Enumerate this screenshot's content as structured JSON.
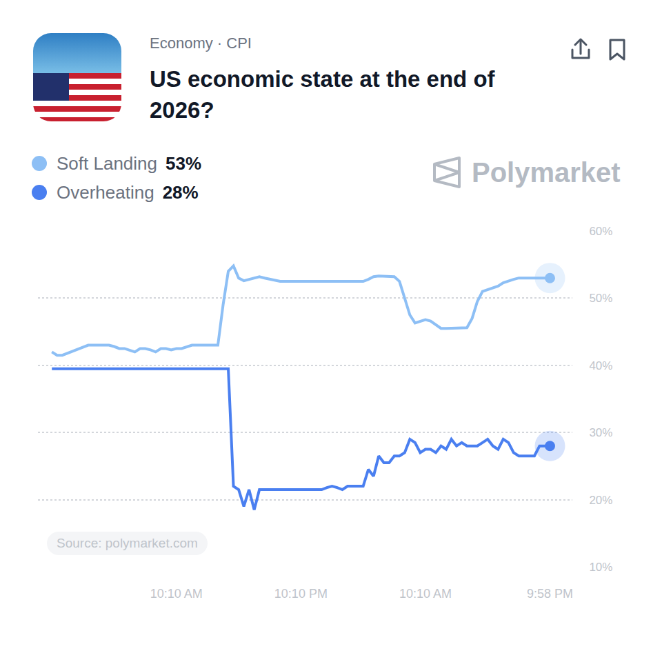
{
  "chart_data": {
    "type": "line",
    "category": "Economy · CPI",
    "title": "US economic state at the end of 2026?",
    "watermark": "Polymarket",
    "source": "Source: polymarket.com",
    "categories": [
      null,
      null,
      null,
      null,
      null,
      null,
      null,
      null,
      null,
      null,
      null,
      null,
      null,
      null,
      null,
      null,
      null,
      null,
      null,
      null,
      null,
      null,
      null,
      null,
      "10:10 AM",
      null,
      null,
      null,
      null,
      null,
      null,
      null,
      null,
      null,
      null,
      null,
      null,
      null,
      null,
      null,
      null,
      null,
      null,
      null,
      null,
      null,
      null,
      null,
      "10:10 PM",
      null,
      null,
      null,
      null,
      null,
      null,
      null,
      null,
      null,
      null,
      null,
      null,
      null,
      null,
      null,
      null,
      null,
      null,
      null,
      null,
      null,
      null,
      null,
      "10:10 AM",
      null,
      null,
      null,
      null,
      null,
      null,
      null,
      null,
      null,
      null,
      null,
      null,
      null,
      null,
      null,
      null,
      null,
      null,
      null,
      null,
      null,
      null,
      null,
      "9:58 PM"
    ],
    "series": [
      {
        "name": "Soft Landing",
        "current_label": "53%",
        "color": "#8dbff5",
        "line_style": "solid",
        "marker": "circle",
        "values": [
          42,
          41.5,
          41.5,
          41.8,
          42.2,
          42.5,
          42.8,
          43,
          43,
          43,
          43,
          43,
          42.8,
          42.5,
          42.5,
          42.3,
          42,
          42.5,
          42.5,
          42.3,
          42,
          42.5,
          42.5,
          42.3,
          42.5,
          42.5,
          42.8,
          43,
          43,
          43,
          43,
          43,
          43,
          49,
          54,
          54.8,
          53,
          52.6,
          52.8,
          53,
          53.2,
          53,
          52.8,
          52.6,
          52.5,
          52.5,
          52.5,
          52.5,
          52.5,
          52.5,
          52.5,
          52.5,
          52.5,
          52.5,
          52.5,
          52.5,
          52.5,
          52.5,
          52.5,
          52.5,
          52.5,
          52.8,
          53.2,
          53.3,
          53.3,
          53.3,
          53.2,
          52.5,
          50,
          47.5,
          46.3,
          46.5,
          46.8,
          46.6,
          46,
          45.5,
          45.5,
          45.5,
          45.5,
          45.5,
          45.6,
          47,
          49.5,
          51,
          51.3,
          51.5,
          51.8,
          52.3,
          52.6,
          52.8,
          53,
          53,
          53,
          53,
          53,
          53,
          53
        ]
      },
      {
        "name": "Overheating",
        "current_label": "28%",
        "color": "#4a7ff0",
        "line_style": "solid",
        "marker": "circle",
        "values": [
          39.5,
          39.5,
          39.5,
          39.5,
          39.5,
          39.5,
          39.5,
          39.5,
          39.5,
          39.5,
          39.5,
          39.5,
          39.5,
          39.5,
          39.5,
          39.5,
          39.5,
          39.5,
          39.5,
          39.5,
          39.5,
          39.5,
          39.5,
          39.5,
          39.5,
          39.5,
          39.5,
          39.5,
          39.5,
          39.5,
          39.5,
          39.5,
          39.5,
          39.5,
          39.5,
          22,
          21.5,
          19,
          21.5,
          18.5,
          21.5,
          21.5,
          21.5,
          21.5,
          21.5,
          21.5,
          21.5,
          21.5,
          21.5,
          21.5,
          21.5,
          21.5,
          21.5,
          21.8,
          22,
          21.8,
          21.5,
          22,
          22,
          22,
          22,
          24.5,
          23.5,
          26.5,
          25.5,
          25.5,
          26.5,
          26.5,
          27,
          29,
          28.5,
          27,
          27.5,
          27.5,
          27,
          28,
          27.5,
          29,
          28,
          28.5,
          28,
          28,
          28,
          28.5,
          29,
          28,
          27.5,
          29,
          28.5,
          27,
          26.5,
          26.5,
          26.5,
          26.5,
          28,
          28,
          28
        ]
      }
    ],
    "ylim": [
      10,
      60
    ],
    "yticks": [
      {
        "value": 10,
        "label": "10%"
      },
      {
        "value": 20,
        "label": "20%"
      },
      {
        "value": 30,
        "label": "30%"
      },
      {
        "value": 40,
        "label": "40%"
      },
      {
        "value": 50,
        "label": "50%"
      },
      {
        "value": 60,
        "label": "60%"
      }
    ],
    "grid": true,
    "legend": "top left"
  }
}
